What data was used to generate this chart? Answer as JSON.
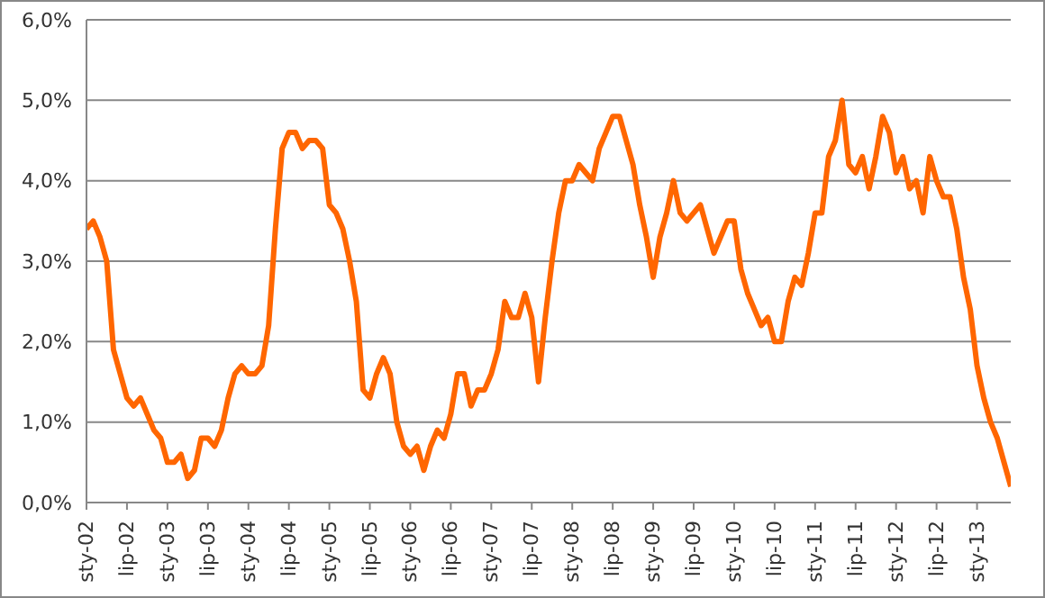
{
  "chart_data": {
    "type": "line",
    "categories": [
      "sty-02",
      null,
      null,
      null,
      null,
      null,
      "lip-02",
      null,
      null,
      null,
      null,
      null,
      "sty-03",
      null,
      null,
      null,
      null,
      null,
      "lip-03",
      null,
      null,
      null,
      null,
      null,
      "sty-04",
      null,
      null,
      null,
      null,
      null,
      "lip-04",
      null,
      null,
      null,
      null,
      null,
      "sty-05",
      null,
      null,
      null,
      null,
      null,
      "lip-05",
      null,
      null,
      null,
      null,
      null,
      "sty-06",
      null,
      null,
      null,
      null,
      null,
      "lip-06",
      null,
      null,
      null,
      null,
      null,
      "sty-07",
      null,
      null,
      null,
      null,
      null,
      "lip-07",
      null,
      null,
      null,
      null,
      null,
      "sty-08",
      null,
      null,
      null,
      null,
      null,
      "lip-08",
      null,
      null,
      null,
      null,
      null,
      "sty-09",
      null,
      null,
      null,
      null,
      null,
      "lip-09",
      null,
      null,
      null,
      null,
      null,
      "sty-10",
      null,
      null,
      null,
      null,
      null,
      "lip-10",
      null,
      null,
      null,
      null,
      null,
      "sty-11",
      null,
      null,
      null,
      null,
      null,
      "lip-11",
      null,
      null,
      null,
      null,
      null,
      "sty-12",
      null,
      null,
      null,
      null,
      null,
      "lip-12",
      null,
      null,
      null,
      null,
      null,
      "sty-13",
      null,
      null,
      null,
      null,
      null
    ],
    "series": [
      {
        "color": "#ff6600",
        "values": [
          3.4,
          3.5,
          3.3,
          3.0,
          1.9,
          1.6,
          1.3,
          1.2,
          1.3,
          1.1,
          0.9,
          0.8,
          0.5,
          0.5,
          0.6,
          0.3,
          0.4,
          0.8,
          0.8,
          0.7,
          0.9,
          1.3,
          1.6,
          1.7,
          1.6,
          1.6,
          1.7,
          2.2,
          3.4,
          4.4,
          4.6,
          4.6,
          4.4,
          4.5,
          4.5,
          4.4,
          3.7,
          3.6,
          3.4,
          3.0,
          2.5,
          1.4,
          1.3,
          1.6,
          1.8,
          1.6,
          1.0,
          0.7,
          0.6,
          0.7,
          0.4,
          0.7,
          0.9,
          0.8,
          1.1,
          1.6,
          1.6,
          1.2,
          1.4,
          1.4,
          1.6,
          1.9,
          2.5,
          2.3,
          2.3,
          2.6,
          2.3,
          1.5,
          2.3,
          3.0,
          3.6,
          4.0,
          4.0,
          4.2,
          4.1,
          4.0,
          4.4,
          4.6,
          4.8,
          4.8,
          4.5,
          4.2,
          3.7,
          3.3,
          2.8,
          3.3,
          3.6,
          4.0,
          3.6,
          3.5,
          3.6,
          3.7,
          3.4,
          3.1,
          3.3,
          3.5,
          3.5,
          2.9,
          2.6,
          2.4,
          2.2,
          2.3,
          2.0,
          2.0,
          2.5,
          2.8,
          2.7,
          3.1,
          3.6,
          3.6,
          4.3,
          4.5,
          5.0,
          4.2,
          4.1,
          4.3,
          3.9,
          4.3,
          4.8,
          4.6,
          4.1,
          4.3,
          3.9,
          4.0,
          3.6,
          4.3,
          4.0,
          3.8,
          3.8,
          3.4,
          2.8,
          2.4,
          1.7,
          1.3,
          1.0,
          0.8,
          0.5,
          0.2
        ]
      }
    ],
    "ylim": [
      0,
      6
    ],
    "yticks": [
      {
        "value": 0,
        "label": "0,0%"
      },
      {
        "value": 1,
        "label": "1,0%"
      },
      {
        "value": 2,
        "label": "2,0%"
      },
      {
        "value": 3,
        "label": "3,0%"
      },
      {
        "value": 4,
        "label": "4,0%"
      },
      {
        "value": 5,
        "label": "5,0%"
      },
      {
        "value": 6,
        "label": "6,0%"
      }
    ],
    "grid": "y",
    "legend": false,
    "marker": "none",
    "line_style": "solid"
  }
}
